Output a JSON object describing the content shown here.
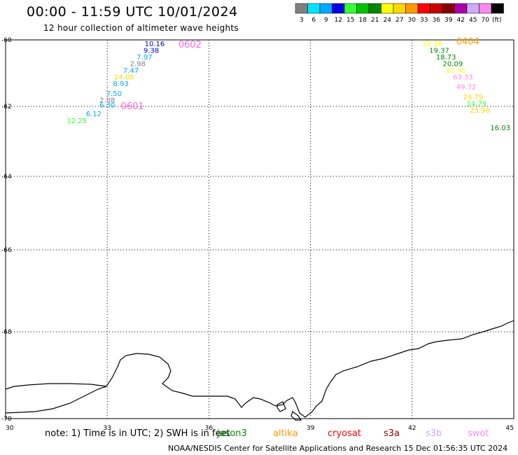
{
  "header": {
    "title": "00:00 - 11:59 UTC 10/01/2024",
    "subtitle": "12 hour collection of altimeter wave heights"
  },
  "colorbar": {
    "labels": [
      "3",
      "6",
      "9",
      "12",
      "15",
      "18",
      "21",
      "24",
      "27",
      "30",
      "33",
      "36",
      "39",
      "42",
      "45",
      "70",
      "(ft)"
    ],
    "colors": [
      "#808080",
      "#00e5ff",
      "#00a8ff",
      "#0000e6",
      "#33ff33",
      "#00c400",
      "#008800",
      "#ffff00",
      "#ffd700",
      "#ff9900",
      "#ff0000",
      "#cc0000",
      "#880000",
      "#aa00aa",
      "#ccaaff",
      "#ff88ee",
      "#000000"
    ]
  },
  "map": {
    "lon_ticks": [
      "30",
      "33",
      "36",
      "39",
      "42",
      "45"
    ],
    "lat_ticks": [
      "-60",
      "-62",
      "-64",
      "-66",
      "-68",
      "-70"
    ]
  },
  "tracks": [
    {
      "id": "0602",
      "label": "0602",
      "color": "#ff66dd",
      "points": [
        {
          "lon": 34.4,
          "lat": -60.1,
          "value": "10.16",
          "color": "#0000aa"
        },
        {
          "lon": 34.3,
          "lat": -60.3,
          "value": "9.38",
          "color": "#0000e6"
        },
        {
          "lon": 34.1,
          "lat": -60.5,
          "value": "7.97",
          "color": "#00a8ff"
        },
        {
          "lon": 33.9,
          "lat": -60.7,
          "value": "2.98",
          "color": "#808080"
        },
        {
          "lon": 33.7,
          "lat": -60.9,
          "value": "7.47",
          "color": "#00a8ff"
        },
        {
          "lon": 33.5,
          "lat": -61.1,
          "value": "24.08",
          "color": "#ffd700"
        },
        {
          "lon": 33.4,
          "lat": -61.3,
          "value": "8.93",
          "color": "#00a8ff"
        },
        {
          "lon": 33.2,
          "lat": -61.6,
          "value": "7.50",
          "color": "#00a8ff"
        },
        {
          "lon": 33.0,
          "lat": -61.8,
          "value": "2.88",
          "color": "#808080"
        },
        {
          "lon": 33.0,
          "lat": -61.95,
          "value": "6.30",
          "color": "#00a8ff"
        },
        {
          "lon": 32.6,
          "lat": -62.2,
          "value": "6.12",
          "color": "#00a8ff"
        },
        {
          "lon": 32.1,
          "lat": -62.4,
          "value": "12.25",
          "color": "#33ff33"
        }
      ]
    },
    {
      "id": "0601",
      "label": "0601",
      "color": "#ff66dd",
      "points": []
    },
    {
      "id": "0404",
      "label": "0404",
      "color": "#ff9900",
      "points": [
        {
          "lon": 42.6,
          "lat": -60.1,
          "value": "22.28",
          "color": "#ffff00"
        },
        {
          "lon": 42.8,
          "lat": -60.3,
          "value": "19.37",
          "color": "#008800"
        },
        {
          "lon": 43.0,
          "lat": -60.5,
          "value": "18.73",
          "color": "#008800"
        },
        {
          "lon": 43.2,
          "lat": -60.7,
          "value": "20.09",
          "color": "#008800"
        },
        {
          "lon": 43.3,
          "lat": -60.9,
          "value": "21.41",
          "color": "#ffff00"
        },
        {
          "lon": 43.5,
          "lat": -61.1,
          "value": "63.33",
          "color": "#ff88ee"
        },
        {
          "lon": 43.6,
          "lat": -61.4,
          "value": "49.72",
          "color": "#ff88ee"
        },
        {
          "lon": 43.8,
          "lat": -61.7,
          "value": "24.79",
          "color": "#ffd700"
        },
        {
          "lon": 43.9,
          "lat": -61.9,
          "value": "14.79",
          "color": "#33ff33"
        },
        {
          "lon": 44.0,
          "lat": -62.1,
          "value": "25.96",
          "color": "#ffd700"
        },
        {
          "lon": 44.6,
          "lat": -62.6,
          "value": "16.03",
          "color": "#008800"
        }
      ]
    }
  ],
  "note": "note: 1) Time is in UTC; 2) SWH is in feet",
  "satellites": [
    {
      "name": "jason3",
      "color": "#008800"
    },
    {
      "name": "altika",
      "color": "#ff9900"
    },
    {
      "name": "cryosat",
      "color": "#ff0000"
    },
    {
      "name": "s3a",
      "color": "#880000"
    },
    {
      "name": "s3b",
      "color": "#ccaaff"
    },
    {
      "name": "swot",
      "color": "#ff88ee"
    }
  ],
  "footer": "NOAA/NESDIS Center for Satellite Applications and Research    15 Dec 01:56:35 UTC 2024"
}
